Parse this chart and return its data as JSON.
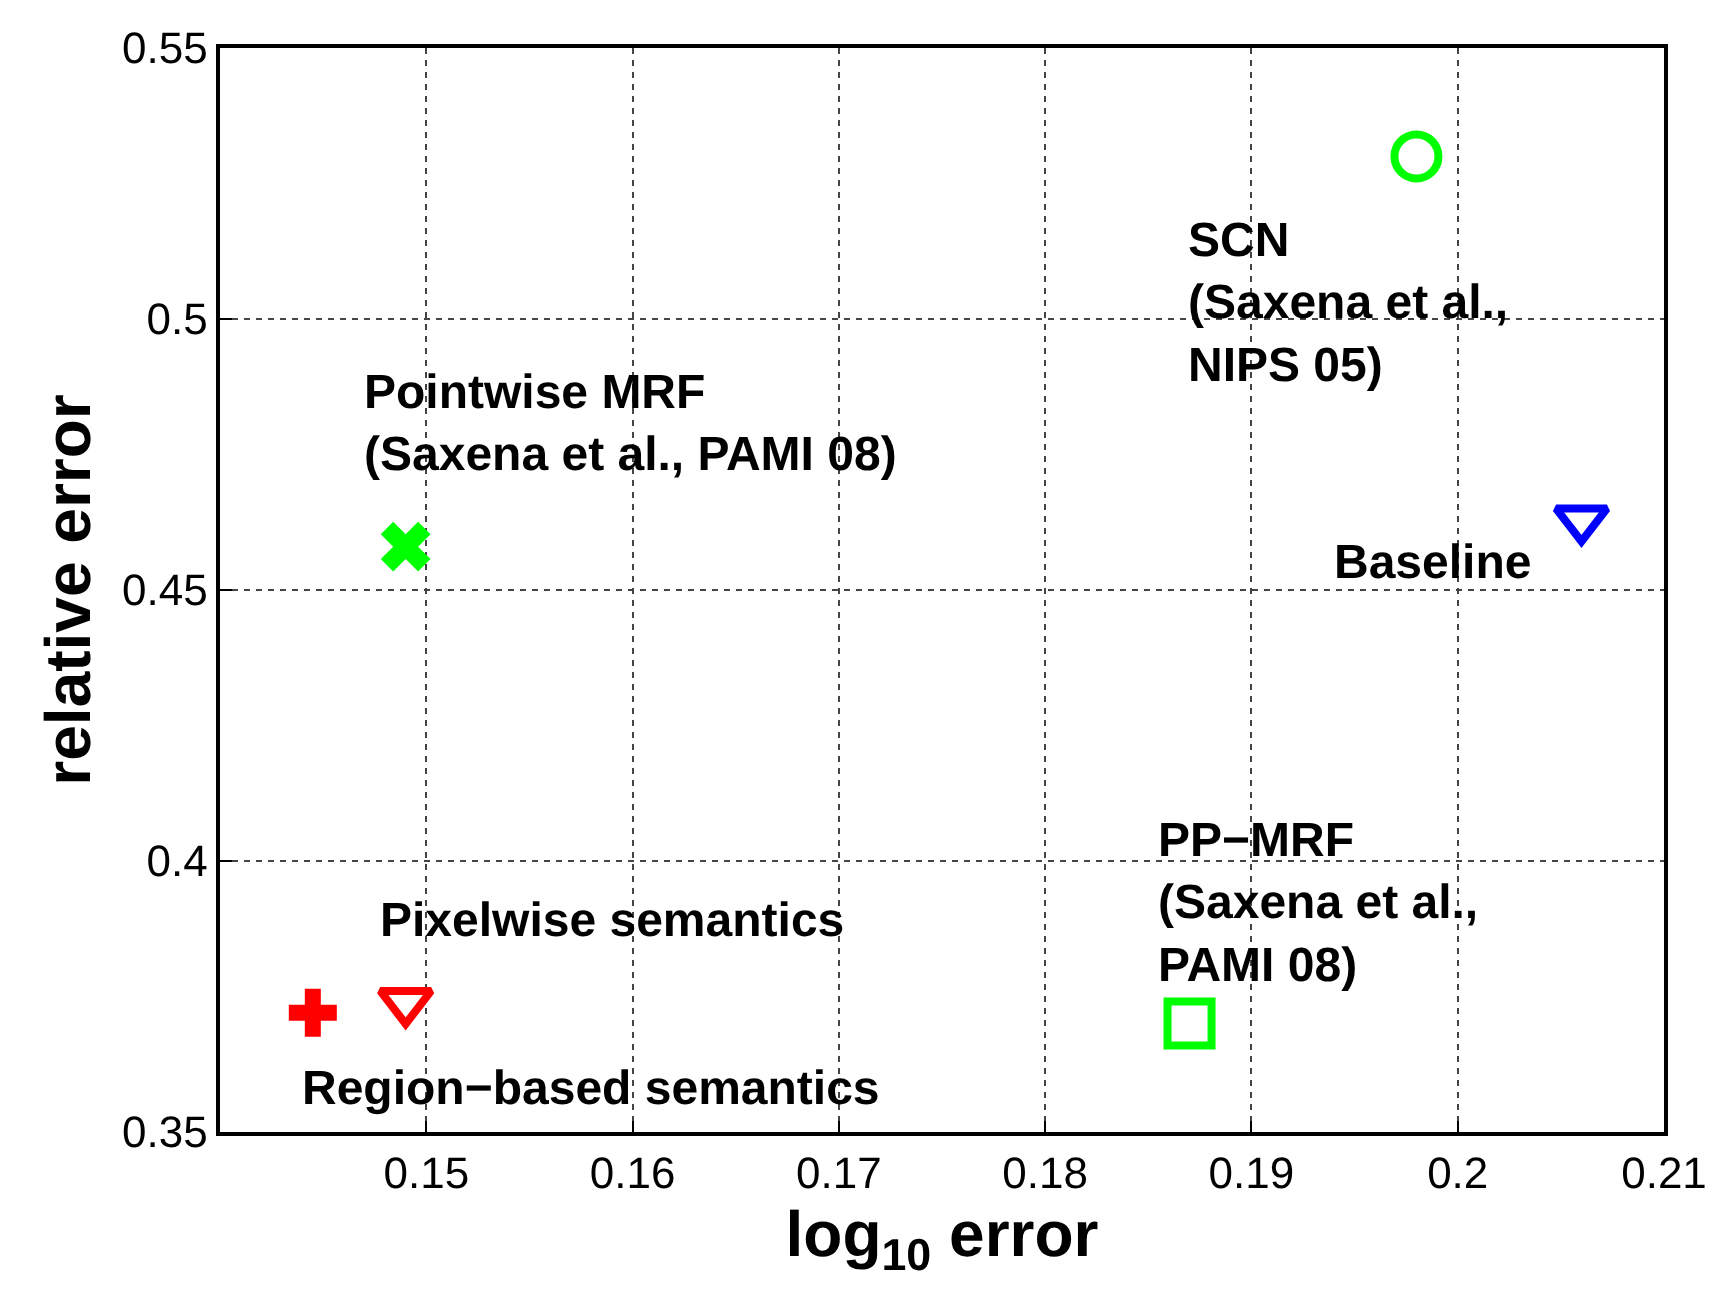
{
  "chart_data": {
    "type": "scatter",
    "xlabel": "log$_{10}$ error",
    "ylabel": "relative error",
    "xlim": [
      0.14,
      0.21
    ],
    "xticks": [
      0.15,
      0.16,
      0.17,
      0.18,
      0.19,
      0.2,
      0.21
    ],
    "ylim": [
      0.35,
      0.55
    ],
    "yticks": [
      0.35,
      0.4,
      0.45,
      0.5,
      0.55
    ],
    "grid": true,
    "series": [
      {
        "name": "SCN\n(Saxena et al.,\nNIPS 05)",
        "color": "#00ff00",
        "marker": "circle",
        "x": [
          0.198
        ],
        "values": [
          0.53
        ]
      },
      {
        "name": "Pointwise MRF\n(Saxena et al., PAMI 08)",
        "color": "#00ff00",
        "marker": "x",
        "x": [
          0.149
        ],
        "values": [
          0.458
        ]
      },
      {
        "name": "Baseline",
        "color": "#0000ff",
        "marker": "triangle",
        "x": [
          0.206
        ],
        "values": [
          0.463
        ]
      },
      {
        "name": "PP−MRF\n(Saxena et al.,\nPAMI 08)",
        "color": "#00ff00",
        "marker": "square",
        "x": [
          0.187
        ],
        "values": [
          0.37
        ]
      },
      {
        "name": "Pixelwise semantics",
        "color": "#ff0000",
        "marker": "triangle",
        "x": [
          0.149
        ],
        "values": [
          0.374
        ]
      },
      {
        "name": "Region−based semantics",
        "color": "#ff0000",
        "marker": "cross",
        "x": [
          0.1445
        ],
        "values": [
          0.372
        ]
      }
    ]
  }
}
